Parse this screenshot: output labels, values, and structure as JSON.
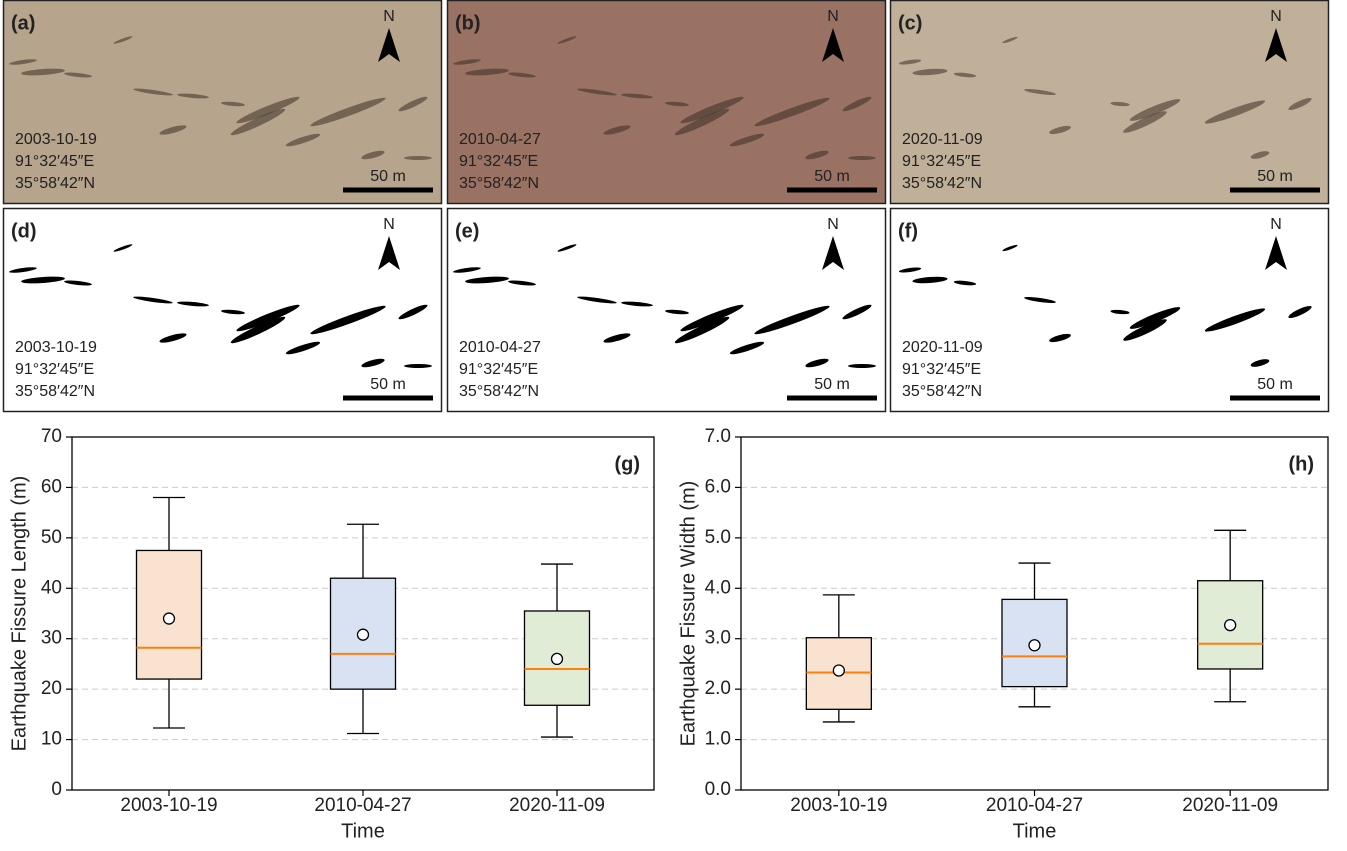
{
  "panels": [
    {
      "label": "(a)",
      "date": "2003-10-19",
      "lon": "91°32′45″E",
      "lat": "35°58′42″N",
      "scale": "50 m",
      "north": "N"
    },
    {
      "label": "(b)",
      "date": "2010-04-27",
      "lon": "91°32′45″E",
      "lat": "35°58′42″N",
      "scale": "50 m",
      "north": "N"
    },
    {
      "label": "(c)",
      "date": "2020-11-09",
      "lon": "91°32′45″E",
      "lat": "35°58′42″N",
      "scale": "50 m",
      "north": "N"
    },
    {
      "label": "(d)",
      "date": "2003-10-19",
      "lon": "91°32′45″E",
      "lat": "35°58′42″N",
      "scale": "50 m",
      "north": "N"
    },
    {
      "label": "(e)",
      "date": "2010-04-27",
      "lon": "91°32′45″E",
      "lat": "35°58′42″N",
      "scale": "50 m",
      "north": "N"
    },
    {
      "label": "(f)",
      "date": "2020-11-09",
      "lon": "91°32′45″E",
      "lat": "35°58′42″N",
      "scale": "50 m",
      "north": "N"
    }
  ],
  "chart_data": [
    {
      "type": "box",
      "panel_label": "(g)",
      "xlabel": "Time",
      "ylabel": "Earthquake Fissure Length (m)",
      "categories": [
        "2003-10-19",
        "2010-04-27",
        "2020-11-09"
      ],
      "whislo": [
        12.3,
        11.2,
        10.5
      ],
      "q1": [
        22,
        20,
        16.8
      ],
      "median": [
        28.2,
        27,
        24
      ],
      "q3": [
        47.5,
        42,
        35.5
      ],
      "whishi": [
        58,
        52.7,
        44.8
      ],
      "mean": [
        34,
        30.8,
        26
      ],
      "colors": [
        "#f9e3d0",
        "#d9e2f3",
        "#e1ecd6"
      ],
      "median_color": "#ff7f0e",
      "ylim": [
        0,
        70
      ],
      "yticks": [
        0,
        10,
        20,
        30,
        40,
        50,
        60,
        70
      ],
      "grid": true
    },
    {
      "type": "box",
      "panel_label": "(h)",
      "xlabel": "Time",
      "ylabel": "Earthquake Fissure Width (m)",
      "categories": [
        "2003-10-19",
        "2010-04-27",
        "2020-11-09"
      ],
      "whislo": [
        1.35,
        1.65,
        1.75
      ],
      "q1": [
        1.6,
        2.05,
        2.4
      ],
      "median": [
        2.33,
        2.65,
        2.9
      ],
      "q3": [
        3.02,
        3.78,
        4.15
      ],
      "whishi": [
        3.87,
        4.5,
        5.15
      ],
      "mean": [
        2.37,
        2.87,
        3.27
      ],
      "colors": [
        "#f9e3d0",
        "#d9e2f3",
        "#e1ecd6"
      ],
      "median_color": "#ff7f0e",
      "ylim": [
        0,
        7
      ],
      "yticks": [
        {
          "value": 0,
          "label": "0.0"
        },
        {
          "value": 1,
          "label": "1.0"
        },
        {
          "value": 2,
          "label": "2.0"
        },
        {
          "value": 3,
          "label": "3.0"
        },
        {
          "value": 4,
          "label": "4.0"
        },
        {
          "value": 5,
          "label": "5.0"
        },
        {
          "value": 6,
          "label": "6.0"
        },
        {
          "value": 7,
          "label": "7.0"
        }
      ],
      "grid": true
    }
  ]
}
